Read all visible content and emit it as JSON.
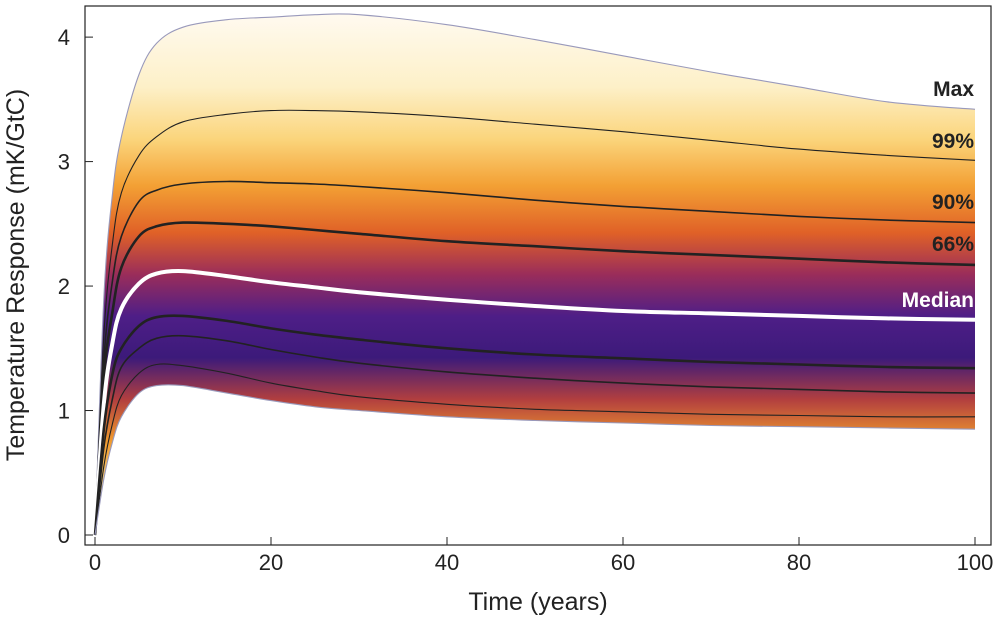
{
  "chart_data": {
    "type": "area",
    "xlabel": "Time (years)",
    "ylabel": "Temperature Response (mK/GtC)",
    "xlim": [
      0,
      100
    ],
    "ylim": [
      0,
      4.25
    ],
    "x_ticks": [
      "0",
      "20",
      "40",
      "60",
      "80",
      "100"
    ],
    "y_ticks": [
      "0",
      "1",
      "2",
      "3",
      "4"
    ],
    "x_tick_values": [
      0,
      20,
      40,
      60,
      80,
      100
    ],
    "y_tick_values": [
      0,
      1,
      2,
      3,
      4
    ],
    "grid": false,
    "x": [
      0,
      1,
      2,
      3,
      5,
      7,
      10,
      15,
      20,
      25,
      30,
      40,
      50,
      60,
      70,
      80,
      90,
      100
    ],
    "series": [
      {
        "name": "Max",
        "values": [
          0,
          1.9,
          2.75,
          3.2,
          3.7,
          3.95,
          4.08,
          4.14,
          4.16,
          4.18,
          4.18,
          4.1,
          3.98,
          3.85,
          3.72,
          3.6,
          3.48,
          3.42
        ]
      },
      {
        "name": "99%",
        "values": [
          0,
          1.6,
          2.35,
          2.75,
          3.05,
          3.2,
          3.32,
          3.38,
          3.41,
          3.41,
          3.4,
          3.36,
          3.3,
          3.24,
          3.17,
          3.1,
          3.05,
          3.01
        ]
      },
      {
        "name": "90%",
        "values": [
          0,
          1.4,
          2.05,
          2.4,
          2.68,
          2.77,
          2.82,
          2.84,
          2.83,
          2.82,
          2.8,
          2.75,
          2.69,
          2.64,
          2.6,
          2.56,
          2.53,
          2.51
        ]
      },
      {
        "name": "66%",
        "values": [
          0,
          1.25,
          1.8,
          2.15,
          2.4,
          2.48,
          2.51,
          2.5,
          2.48,
          2.45,
          2.42,
          2.36,
          2.32,
          2.28,
          2.25,
          2.22,
          2.19,
          2.17
        ]
      },
      {
        "name": "Median",
        "values": [
          0,
          1.05,
          1.55,
          1.82,
          2.02,
          2.1,
          2.12,
          2.08,
          2.03,
          1.99,
          1.95,
          1.89,
          1.84,
          1.8,
          1.78,
          1.76,
          1.74,
          1.73
        ]
      },
      {
        "name": "",
        "values": [
          0,
          0.85,
          1.3,
          1.5,
          1.68,
          1.75,
          1.76,
          1.72,
          1.66,
          1.61,
          1.57,
          1.5,
          1.45,
          1.42,
          1.39,
          1.37,
          1.35,
          1.34
        ]
      },
      {
        "name": "",
        "values": [
          0,
          0.7,
          1.1,
          1.35,
          1.5,
          1.58,
          1.6,
          1.56,
          1.49,
          1.43,
          1.38,
          1.31,
          1.26,
          1.22,
          1.19,
          1.17,
          1.15,
          1.14
        ]
      },
      {
        "name": "",
        "values": [
          0,
          0.55,
          0.9,
          1.12,
          1.3,
          1.37,
          1.36,
          1.3,
          1.22,
          1.16,
          1.11,
          1.05,
          1.01,
          0.99,
          0.97,
          0.96,
          0.95,
          0.95
        ]
      },
      {
        "name": "",
        "values": [
          0,
          0.45,
          0.75,
          0.95,
          1.14,
          1.2,
          1.2,
          1.14,
          1.08,
          1.03,
          1.0,
          0.95,
          0.92,
          0.9,
          0.88,
          0.87,
          0.86,
          0.85
        ]
      }
    ],
    "labels": [
      "Max",
      "99%",
      "90%",
      "66%",
      "Median"
    ],
    "colors": {
      "outer": "#fdf1cf",
      "yellow": "#fbd67f",
      "orange": "#f29a2e",
      "red": "#df5a2a",
      "purple": "#4e1e87",
      "median_line": "#ffffff",
      "percentile_line": "#222222",
      "max_line": "#9999bb"
    }
  }
}
